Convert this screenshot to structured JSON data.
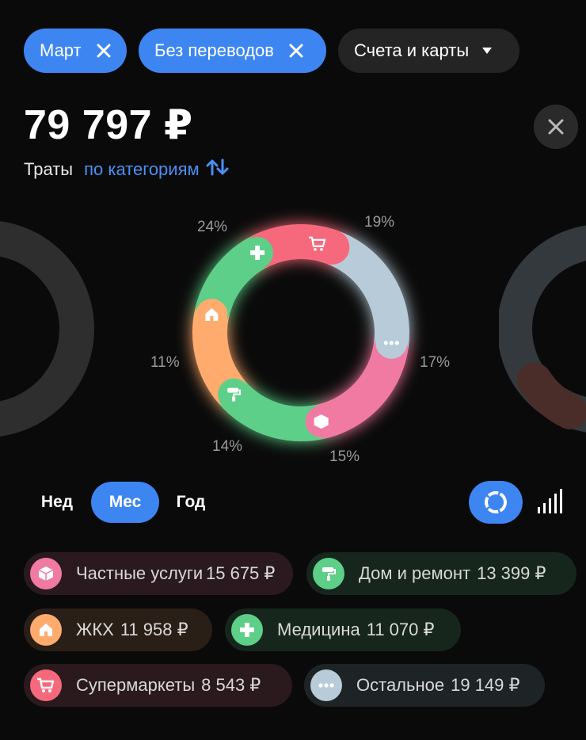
{
  "filters": {
    "month": "Март",
    "transfers": "Без переводов",
    "accounts": "Счета и карты"
  },
  "summary": {
    "total": "79 797 ₽",
    "label": "Траты",
    "grouping": "по категориям"
  },
  "chart_data": {
    "type": "pie",
    "categories": [
      "Остальное",
      "Частные услуги",
      "Дом и ремонт",
      "ЖКХ",
      "Медицина",
      "Супермаркеты"
    ],
    "values": [
      19149,
      15675,
      13399,
      11958,
      11070,
      8543
    ],
    "percent_labels": [
      "24%",
      "19%",
      "17%",
      "15%",
      "14%",
      "11%"
    ],
    "colors": [
      "#b7ccd8",
      "#f17aa2",
      "#5dcf88",
      "#ffab6d",
      "#5dcf88",
      "#f6697c"
    ]
  },
  "periods": [
    "Нед",
    "Мес",
    "Год"
  ],
  "active_period": "Мес",
  "categories": [
    {
      "name": "Частные услуги",
      "amount": "15 675 ₽",
      "color": "#f17aa2",
      "icon": "box-icon"
    },
    {
      "name": "Дом и ремонт",
      "amount": "13 399 ₽",
      "color": "#5dcf88",
      "icon": "paint-roller-icon"
    },
    {
      "name": "ЖКХ",
      "amount": "11 958 ₽",
      "color": "#ffab6d",
      "icon": "house-icon"
    },
    {
      "name": "Медицина",
      "amount": "11 070 ₽",
      "color": "#5dcf88",
      "icon": "medical-cross-icon"
    },
    {
      "name": "Супермаркеты",
      "amount": "8 543 ₽",
      "color": "#f6697c",
      "icon": "cart-icon"
    },
    {
      "name": "Остальное",
      "amount": "19 149 ₽",
      "color": "#b7ccd8",
      "icon": "dots-icon"
    }
  ]
}
